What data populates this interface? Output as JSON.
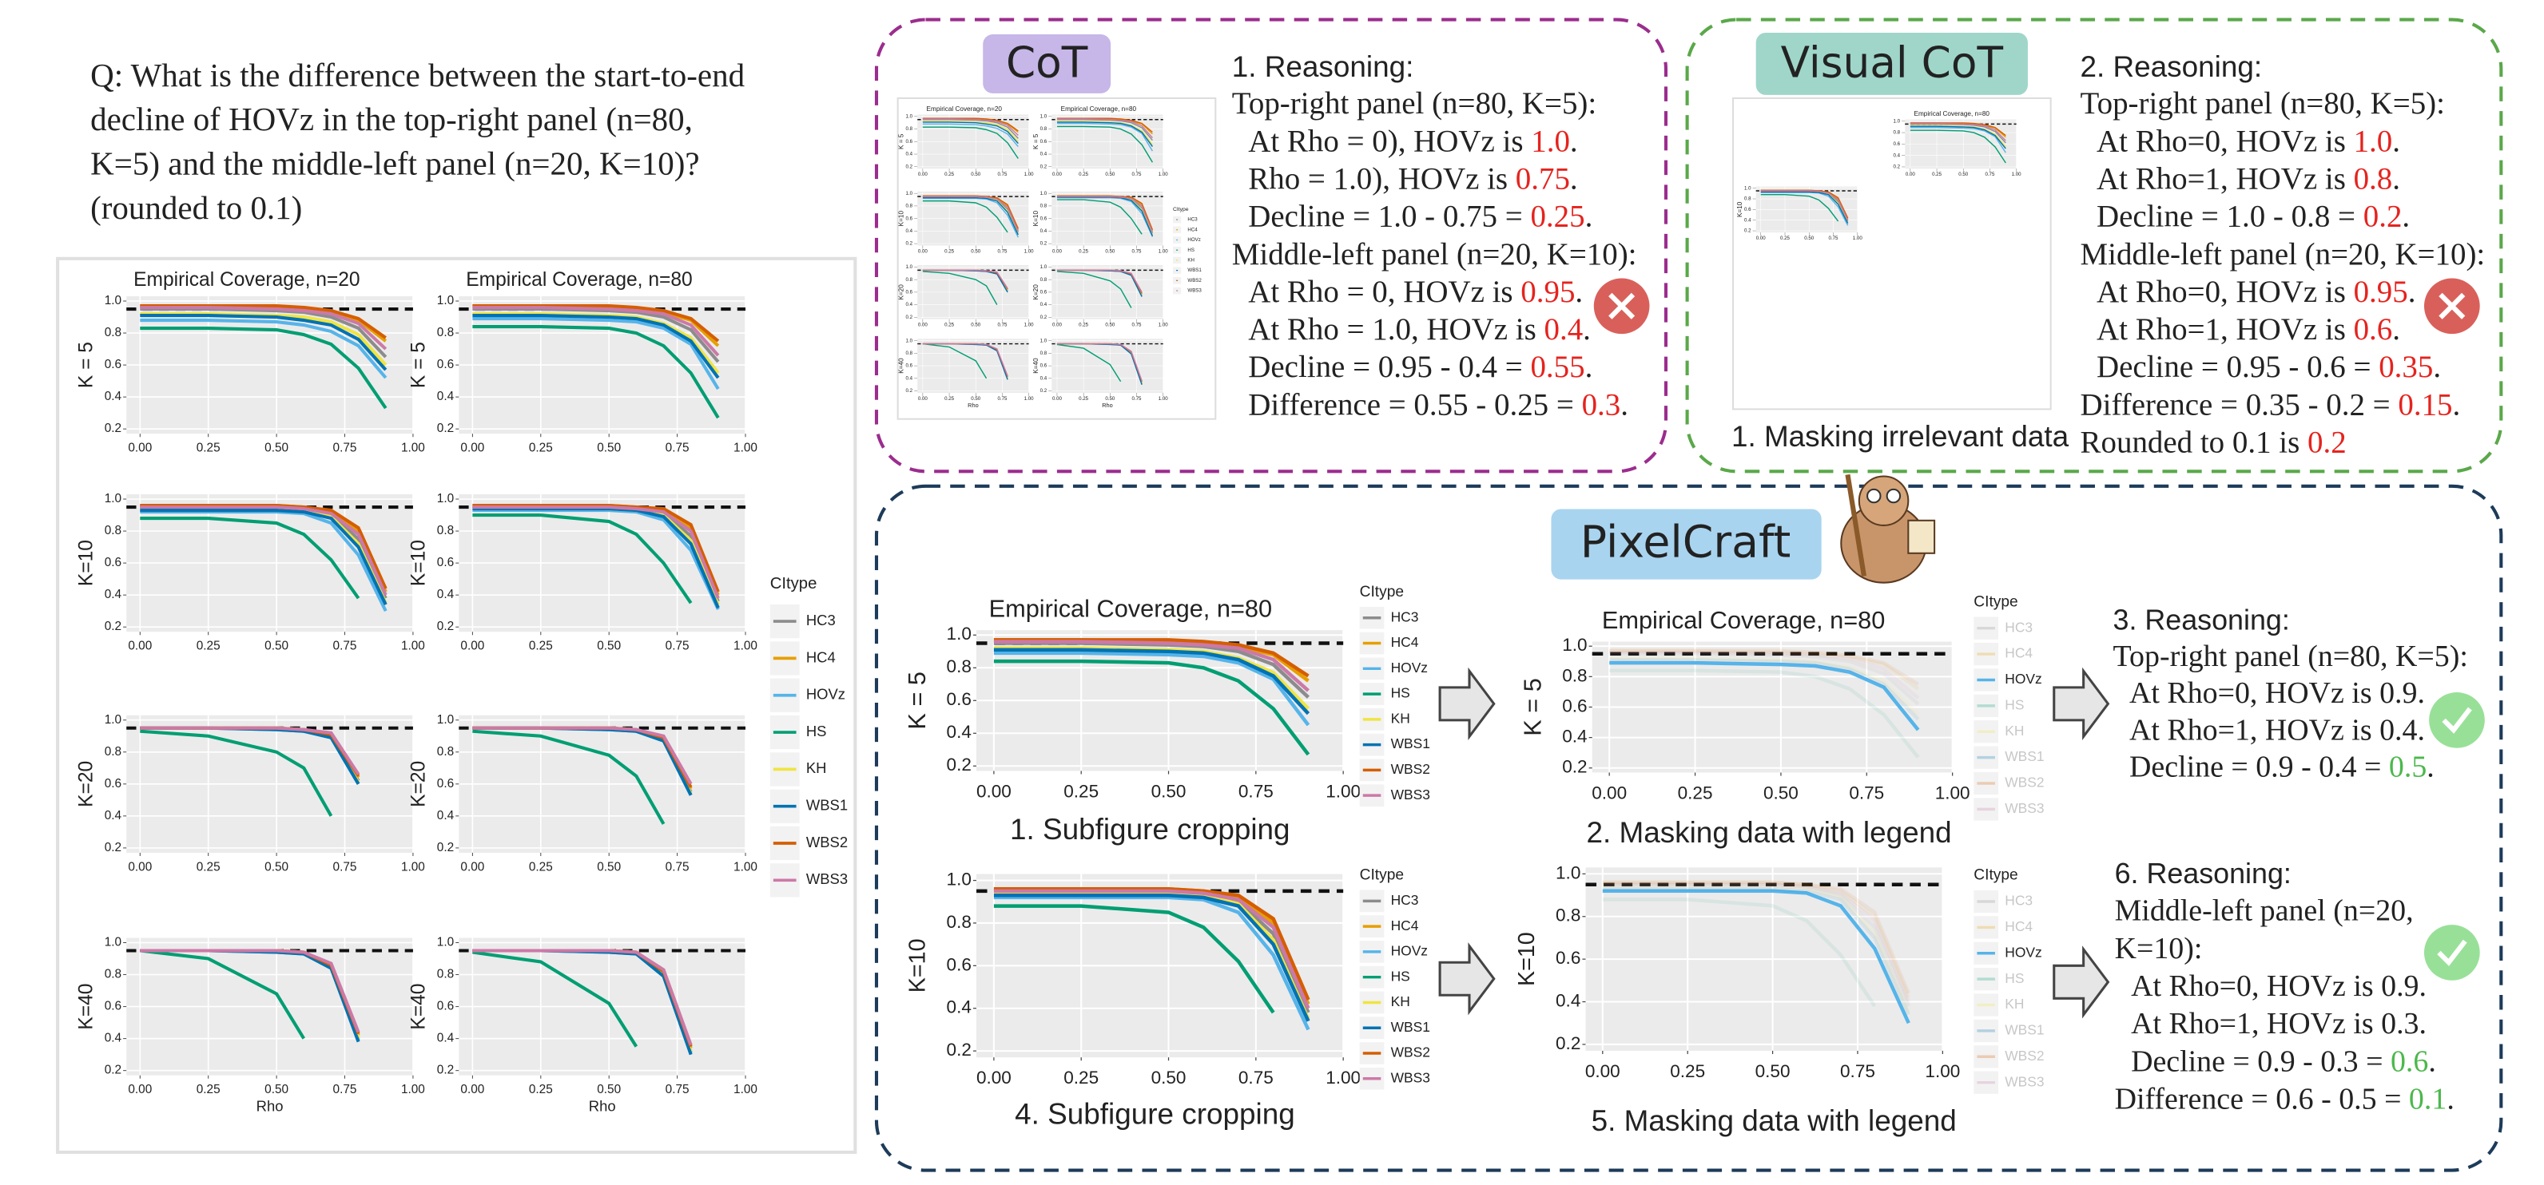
{
  "question": [
    "Q: What is the difference between the start-to-end",
    "decline of HOVz in the top-right panel (n=80,",
    "K=5) and the middle-left panel (n=20, K=10)?",
    "(rounded to 0.1)"
  ],
  "chart_data": {
    "type": "line",
    "column_titles": [
      "Empirical Coverage, n=20",
      "Empirical Coverage, n=80"
    ],
    "row_labels": [
      "K = 5",
      "K=10",
      "K=20",
      "K=40"
    ],
    "x_label": "Rho",
    "legend_title": "CItype",
    "series": [
      {
        "name": "HC3",
        "color": "#8c8c8c"
      },
      {
        "name": "HC4",
        "color": "#e69f00"
      },
      {
        "name": "HOVz",
        "color": "#56b4e9"
      },
      {
        "name": "HS",
        "color": "#009e73"
      },
      {
        "name": "KH",
        "color": "#f0e442"
      },
      {
        "name": "WBS1",
        "color": "#0072b2"
      },
      {
        "name": "WBS2",
        "color": "#d55e00"
      },
      {
        "name": "WBS3",
        "color": "#cc79a7"
      }
    ],
    "x": [
      0,
      0.25,
      0.5,
      0.6,
      0.7,
      0.8,
      0.9
    ],
    "xlim": [
      -0.05,
      1.0
    ],
    "xticks": [
      {
        "value": 0,
        "label": "0.00"
      },
      {
        "value": 0.25,
        "label": "0.25"
      },
      {
        "value": 0.5,
        "label": "0.50"
      },
      {
        "value": 0.75,
        "label": "0.75"
      },
      {
        "value": 1,
        "label": "1.00"
      }
    ],
    "ylim": [
      0.17,
      1.03
    ],
    "yticks": [
      0.2,
      0.4,
      0.6,
      0.8,
      {
        "value": 1,
        "label": "1.0"
      }
    ],
    "reference": 0.95,
    "grid": true,
    "panels": [
      [
        [
          [
            0.95,
            0.95,
            0.94,
            0.93,
            0.9,
            0.83,
            0.65
          ],
          [
            0.97,
            0.97,
            0.96,
            0.95,
            0.93,
            0.88,
            0.75
          ],
          [
            0.88,
            0.88,
            0.87,
            0.85,
            0.81,
            0.72,
            0.52
          ],
          [
            0.83,
            0.83,
            0.82,
            0.79,
            0.73,
            0.58,
            0.33
          ],
          [
            0.92,
            0.92,
            0.91,
            0.9,
            0.87,
            0.79,
            0.6
          ],
          [
            0.91,
            0.91,
            0.9,
            0.88,
            0.85,
            0.76,
            0.57
          ],
          [
            0.97,
            0.97,
            0.97,
            0.96,
            0.94,
            0.89,
            0.77
          ],
          [
            0.96,
            0.96,
            0.95,
            0.94,
            0.92,
            0.86,
            0.7
          ]
        ],
        [
          [
            0.95,
            0.95,
            0.94,
            0.93,
            0.9,
            0.82,
            0.62
          ],
          [
            0.97,
            0.97,
            0.96,
            0.95,
            0.93,
            0.88,
            0.72
          ],
          [
            0.89,
            0.89,
            0.88,
            0.87,
            0.83,
            0.73,
            0.45
          ],
          [
            0.84,
            0.84,
            0.83,
            0.8,
            0.72,
            0.55,
            0.27
          ],
          [
            0.92,
            0.92,
            0.91,
            0.9,
            0.86,
            0.77,
            0.55
          ],
          [
            0.91,
            0.91,
            0.9,
            0.89,
            0.85,
            0.75,
            0.52
          ],
          [
            0.97,
            0.97,
            0.97,
            0.96,
            0.94,
            0.89,
            0.75
          ],
          [
            0.96,
            0.96,
            0.95,
            0.94,
            0.92,
            0.85,
            0.66
          ]
        ]
      ],
      [
        [
          [
            0.95,
            0.95,
            0.95,
            0.94,
            0.9,
            0.75,
            0.38
          ],
          [
            0.96,
            0.96,
            0.96,
            0.95,
            0.92,
            0.8,
            0.42
          ],
          [
            0.92,
            0.92,
            0.92,
            0.91,
            0.85,
            0.65,
            0.3
          ],
          [
            0.88,
            0.88,
            0.85,
            0.78,
            0.62,
            0.38,
            null
          ],
          [
            0.94,
            0.94,
            0.94,
            0.93,
            0.89,
            0.72,
            0.35
          ],
          [
            0.93,
            0.93,
            0.93,
            0.92,
            0.88,
            0.7,
            0.34
          ],
          [
            0.96,
            0.96,
            0.96,
            0.95,
            0.93,
            0.82,
            0.44
          ],
          [
            0.95,
            0.95,
            0.95,
            0.94,
            0.91,
            0.78,
            0.4
          ]
        ],
        [
          [
            0.95,
            0.95,
            0.95,
            0.94,
            0.91,
            0.77,
            0.36
          ],
          [
            0.96,
            0.96,
            0.96,
            0.95,
            0.93,
            0.82,
            0.4
          ],
          [
            0.93,
            0.93,
            0.93,
            0.92,
            0.87,
            0.68,
            0.31
          ],
          [
            0.9,
            0.9,
            0.86,
            0.78,
            0.6,
            0.35,
            null
          ],
          [
            0.95,
            0.95,
            0.94,
            0.93,
            0.9,
            0.74,
            0.34
          ],
          [
            0.94,
            0.94,
            0.94,
            0.93,
            0.89,
            0.72,
            0.32
          ],
          [
            0.96,
            0.96,
            0.96,
            0.95,
            0.94,
            0.84,
            0.42
          ],
          [
            0.95,
            0.95,
            0.95,
            0.94,
            0.92,
            0.8,
            0.38
          ]
        ]
      ],
      [
        [
          [
            0.95,
            0.95,
            0.95,
            0.94,
            0.9,
            0.62,
            null
          ],
          [
            0.95,
            0.95,
            0.95,
            0.94,
            0.91,
            0.64,
            null
          ],
          [
            0.95,
            0.95,
            0.94,
            0.93,
            0.89,
            0.6,
            null
          ],
          [
            0.93,
            0.9,
            0.8,
            0.7,
            0.4,
            null,
            null
          ],
          [
            0.95,
            0.95,
            0.95,
            0.94,
            0.9,
            0.61,
            null
          ],
          [
            0.95,
            0.95,
            0.94,
            0.93,
            0.89,
            0.6,
            null
          ],
          [
            0.95,
            0.95,
            0.95,
            0.94,
            0.91,
            0.65,
            null
          ],
          [
            0.95,
            0.95,
            0.95,
            0.94,
            0.92,
            0.66,
            null
          ]
        ],
        [
          [
            0.95,
            0.95,
            0.95,
            0.94,
            0.88,
            0.55,
            null
          ],
          [
            0.95,
            0.95,
            0.95,
            0.94,
            0.89,
            0.57,
            null
          ],
          [
            0.95,
            0.95,
            0.94,
            0.93,
            0.87,
            0.53,
            null
          ],
          [
            0.93,
            0.9,
            0.78,
            0.65,
            0.35,
            null,
            null
          ],
          [
            0.95,
            0.95,
            0.95,
            0.94,
            0.88,
            0.54,
            null
          ],
          [
            0.95,
            0.95,
            0.94,
            0.93,
            0.87,
            0.53,
            null
          ],
          [
            0.95,
            0.95,
            0.95,
            0.94,
            0.89,
            0.58,
            null
          ],
          [
            0.95,
            0.95,
            0.95,
            0.94,
            0.9,
            0.6,
            null
          ]
        ]
      ],
      [
        [
          [
            0.95,
            0.95,
            0.95,
            0.94,
            0.85,
            0.4,
            null
          ],
          [
            0.95,
            0.95,
            0.95,
            0.94,
            0.86,
            0.42,
            null
          ],
          [
            0.95,
            0.95,
            0.94,
            0.93,
            0.84,
            0.39,
            null
          ],
          [
            0.95,
            0.9,
            0.68,
            0.4,
            null,
            null,
            null
          ],
          [
            0.95,
            0.95,
            0.95,
            0.94,
            0.85,
            0.4,
            null
          ],
          [
            0.95,
            0.95,
            0.94,
            0.93,
            0.84,
            0.38,
            null
          ],
          [
            0.95,
            0.95,
            0.95,
            0.94,
            0.86,
            0.43,
            null
          ],
          [
            0.95,
            0.95,
            0.95,
            0.94,
            0.87,
            0.44,
            null
          ]
        ],
        [
          [
            0.95,
            0.95,
            0.95,
            0.94,
            0.8,
            0.32,
            null
          ],
          [
            0.95,
            0.95,
            0.95,
            0.94,
            0.81,
            0.34,
            null
          ],
          [
            0.95,
            0.95,
            0.94,
            0.93,
            0.79,
            0.31,
            null
          ],
          [
            0.94,
            0.88,
            0.62,
            0.35,
            null,
            null,
            null
          ],
          [
            0.95,
            0.95,
            0.95,
            0.94,
            0.8,
            0.32,
            null
          ],
          [
            0.95,
            0.95,
            0.94,
            0.93,
            0.79,
            0.3,
            null
          ],
          [
            0.95,
            0.95,
            0.95,
            0.94,
            0.82,
            0.35,
            null
          ],
          [
            0.95,
            0.95,
            0.95,
            0.94,
            0.83,
            0.36,
            null
          ]
        ]
      ]
    ]
  },
  "cot": {
    "label": "CoT",
    "title": "1. Reasoning:",
    "highlight_color": "#e5231e",
    "sections": [
      {
        "heading": [
          [
            "Top-right panel (n=80, K=5):"
          ]
        ],
        "items": [
          [
            "At Rho = 0), HOVz is ",
            "1.0",
            "."
          ],
          [
            "Rho = 1.0), HOVz is ",
            "0.75",
            "."
          ],
          [
            "Decline = 1.0 - 0.75 = ",
            "0.25",
            "."
          ]
        ]
      },
      {
        "heading": [
          [
            "Middle-left panel (n=20, K=10):"
          ]
        ],
        "items": [
          [
            "At Rho = 0, HOVz is ",
            "0.95",
            "."
          ],
          [
            "At Rho = 1.0, HOVz is ",
            "0.4",
            "."
          ],
          [
            "Decline = 0.95 - 0.4 = ",
            "0.55",
            "."
          ],
          [
            "Difference = 0.55 - 0.25 = ",
            "0.3",
            "."
          ]
        ]
      }
    ]
  },
  "visual_cot": {
    "label": "Visual CoT",
    "caption": "1. Masking irrelevant data",
    "title": "2. Reasoning:",
    "highlight_color": "#e5231e",
    "sections": [
      {
        "heading": [
          [
            "Top-right panel (n=80, K=5):"
          ]
        ],
        "items": [
          [
            "At Rho=0, HOVz is ",
            "1.0",
            "."
          ],
          [
            "At Rho=1, HOVz is ",
            "0.8",
            "."
          ],
          [
            "Decline = 1.0 - 0.8 = ",
            "0.2",
            "."
          ]
        ]
      },
      {
        "heading": [
          [
            "Middle-left panel (n=20, K=10):"
          ]
        ],
        "items": [
          [
            "At Rho=0, HOVz is ",
            "0.95",
            "."
          ],
          [
            "At Rho=1, HOVz is ",
            "0.6",
            "."
          ],
          [
            "Decline = 0.95 - 0.6 = ",
            "0.35",
            "."
          ]
        ]
      }
    ],
    "tail": [
      [
        "Difference = 0.35 - 0.2 = ",
        "0.15",
        "."
      ],
      [
        "Rounded to 0.1 is ",
        "0.2"
      ]
    ]
  },
  "pixelcraft": {
    "label": "PixelCraft",
    "steps": [
      "1. Subfigure cropping",
      "2. Masking data with legend",
      "4. Subfigure cropping",
      "5. Masking data with legend"
    ],
    "reasoning": [
      {
        "title": "3. Reasoning:",
        "highlight_color": "#4cb84c",
        "sections": [
          {
            "heading": [
              [
                "Top-right panel (n=80, K=5):"
              ]
            ],
            "items": [
              [
                "At Rho=0, HOVz is 0.9."
              ],
              [
                "At Rho=1, HOVz is 0.4."
              ],
              [
                "Decline = 0.9 - 0.4 = ",
                "0.5",
                "."
              ]
            ]
          }
        ]
      },
      {
        "title": "6. Reasoning:",
        "highlight_color": "#4cb84c",
        "sections": [
          {
            "heading": [
              [
                "Middle-left panel (n=20,"
              ],
              [
                "K=10):"
              ]
            ],
            "items": [
              [
                "At Rho=0, HOVz is 0.9."
              ],
              [
                "At Rho=1, HOVz is 0.3."
              ],
              [
                "Decline = 0.9 - 0.3 = ",
                "0.6",
                "."
              ]
            ]
          }
        ],
        "tail": [
          [
            "Difference = 0.6 - 0.5 = ",
            "0.1",
            "."
          ]
        ]
      }
    ]
  }
}
